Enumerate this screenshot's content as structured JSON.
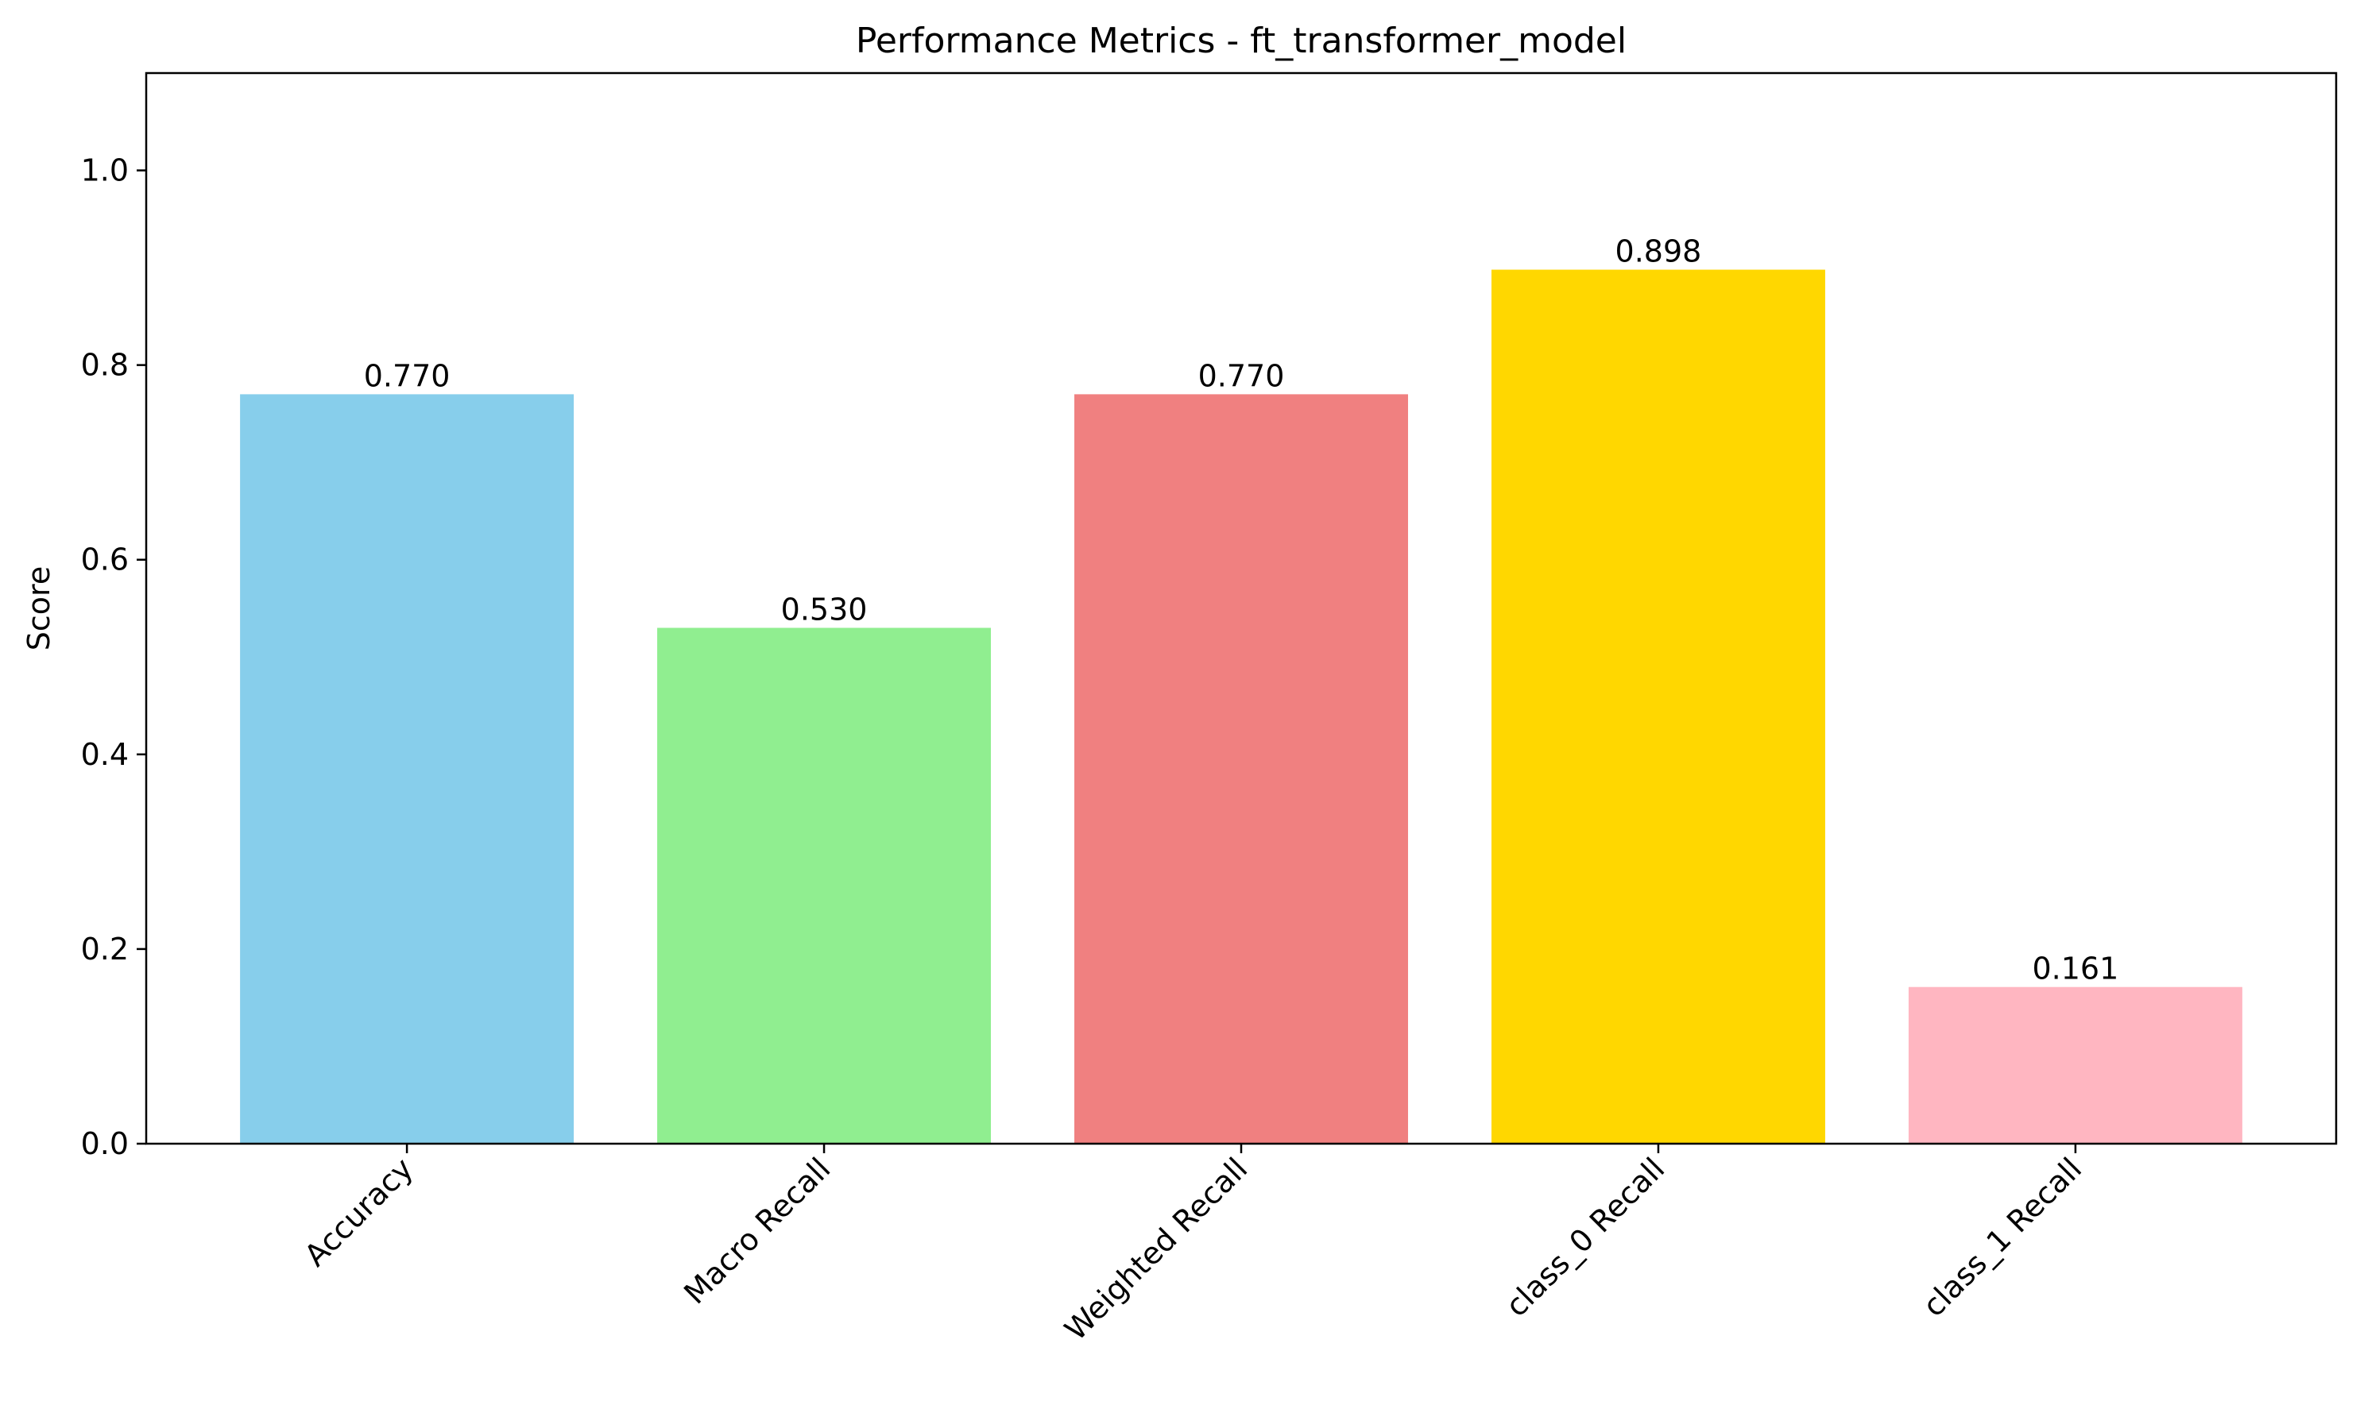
{
  "chart_data": {
    "type": "bar",
    "title": "Performance Metrics - ft_transformer_model",
    "xlabel": "",
    "ylabel": "Score",
    "ylim": [
      0,
      1.1
    ],
    "yticks": [
      0.0,
      0.2,
      0.4,
      0.6,
      0.8,
      1.0
    ],
    "ytick_labels": [
      "0.0",
      "0.2",
      "0.4",
      "0.6",
      "0.8",
      "1.0"
    ],
    "grid": false,
    "categories": [
      "Accuracy",
      "Macro Recall",
      "Weighted Recall",
      "class_0 Recall",
      "class_1 Recall"
    ],
    "values": [
      0.77,
      0.53,
      0.77,
      0.898,
      0.161
    ],
    "value_labels": [
      "0.770",
      "0.530",
      "0.770",
      "0.898",
      "0.161"
    ],
    "colors": [
      "#87ceeb",
      "#90ee90",
      "#f08080",
      "#ffd700",
      "#ffb6c1"
    ],
    "xtick_rotation": 45
  }
}
